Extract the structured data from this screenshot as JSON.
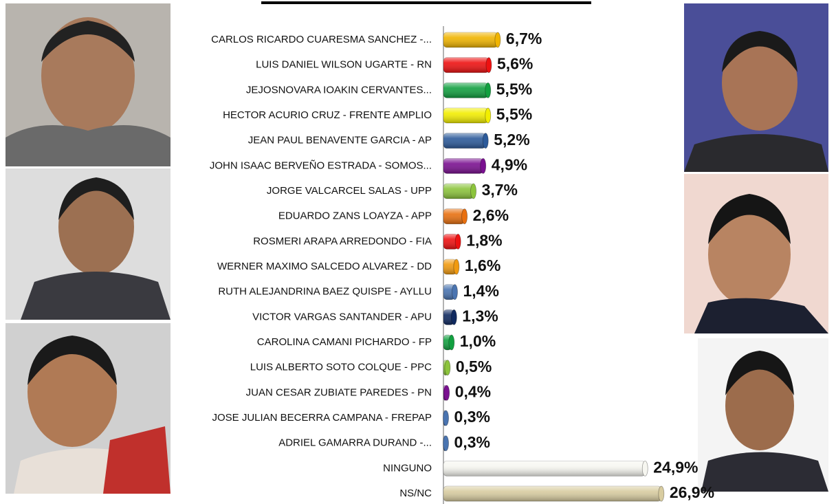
{
  "chart_data": {
    "type": "bar",
    "orientation": "horizontal",
    "categories": [
      "CARLOS RICARDO CUARESMA SANCHEZ -...",
      "LUIS DANIEL WILSON UGARTE - RN",
      "JEJOSNOVARA IOAKIN CERVANTES...",
      "HECTOR ACURIO CRUZ - FRENTE AMPLIO",
      "JEAN PAUL BENAVENTE GARCIA - AP",
      "JOHN ISAAC BERVEÑO ESTRADA - SOMOS...",
      "JORGE VALCARCEL SALAS - UPP",
      "EDUARDO ZANS LOAYZA - APP",
      "ROSMERI ARAPA ARREDONDO - FIA",
      "WERNER MAXIMO SALCEDO ALVAREZ - DD",
      "RUTH ALEJANDRINA BAEZ QUISPE - AYLLU",
      "VICTOR VARGAS SANTANDER - APU",
      "CAROLINA CAMANI PICHARDO - FP",
      "LUIS ALBERTO SOTO COLQUE - PPC",
      "JUAN CESAR ZUBIATE PAREDES - PN",
      "JOSE JULIAN BECERRA CAMPANA - FREPAP",
      "ADRIEL GAMARRA DURAND -...",
      "NINGUNO",
      "NS/NC"
    ],
    "values": [
      6.7,
      5.6,
      5.5,
      5.5,
      5.2,
      4.9,
      3.7,
      2.6,
      1.8,
      1.6,
      1.4,
      1.3,
      1.0,
      0.5,
      0.4,
      0.3,
      0.3,
      24.9,
      26.9
    ],
    "value_labels": [
      "6,7%",
      "5,6%",
      "5,5%",
      "5,5%",
      "5,2%",
      "4,9%",
      "3,7%",
      "2,6%",
      "1,8%",
      "1,6%",
      "1,4%",
      "1,3%",
      "1,0%",
      "0,5%",
      "0,4%",
      "0,3%",
      "0,3%",
      "24,9%",
      "26,9%"
    ],
    "colors": [
      "#f0b400",
      "#ee1111",
      "#12a040",
      "#f2ee00",
      "#2c5a9a",
      "#7a1090",
      "#8cc43c",
      "#e87010",
      "#ee1111",
      "#f09a10",
      "#4a74b0",
      "#102a60",
      "#12a040",
      "#8cc43c",
      "#7a1090",
      "#4a74b0",
      "#4a74b0",
      "#f6f6f0",
      "#d8cca0"
    ],
    "xlim": [
      0,
      27
    ]
  }
}
